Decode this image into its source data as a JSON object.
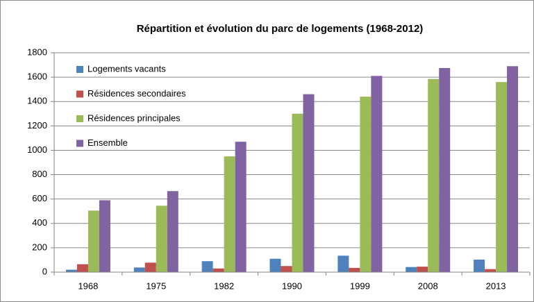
{
  "chart_data": {
    "type": "bar",
    "title": "Répartition et évolution du parc de logements (1968-2012)",
    "categories": [
      "1968",
      "1975",
      "1982",
      "1990",
      "1999",
      "2008",
      "2013"
    ],
    "series": [
      {
        "name": "Logements vacants",
        "color": "#4f81bd",
        "values": [
          20,
          38,
          90,
          110,
          135,
          42,
          103
        ]
      },
      {
        "name": "Résidences secondaires",
        "color": "#c0504d",
        "values": [
          65,
          78,
          30,
          50,
          35,
          45,
          25
        ]
      },
      {
        "name": "Résidences principales",
        "color": "#9bbb59",
        "values": [
          505,
          545,
          950,
          1300,
          1440,
          1585,
          1560
        ]
      },
      {
        "name": "Ensemble",
        "color": "#8064a2",
        "values": [
          590,
          665,
          1070,
          1460,
          1610,
          1675,
          1690
        ]
      }
    ],
    "ylim": [
      0,
      1800
    ],
    "yticks": [
      0,
      200,
      400,
      600,
      800,
      1000,
      1200,
      1400,
      1600,
      1800
    ],
    "grid": true,
    "legend": "top-left"
  }
}
